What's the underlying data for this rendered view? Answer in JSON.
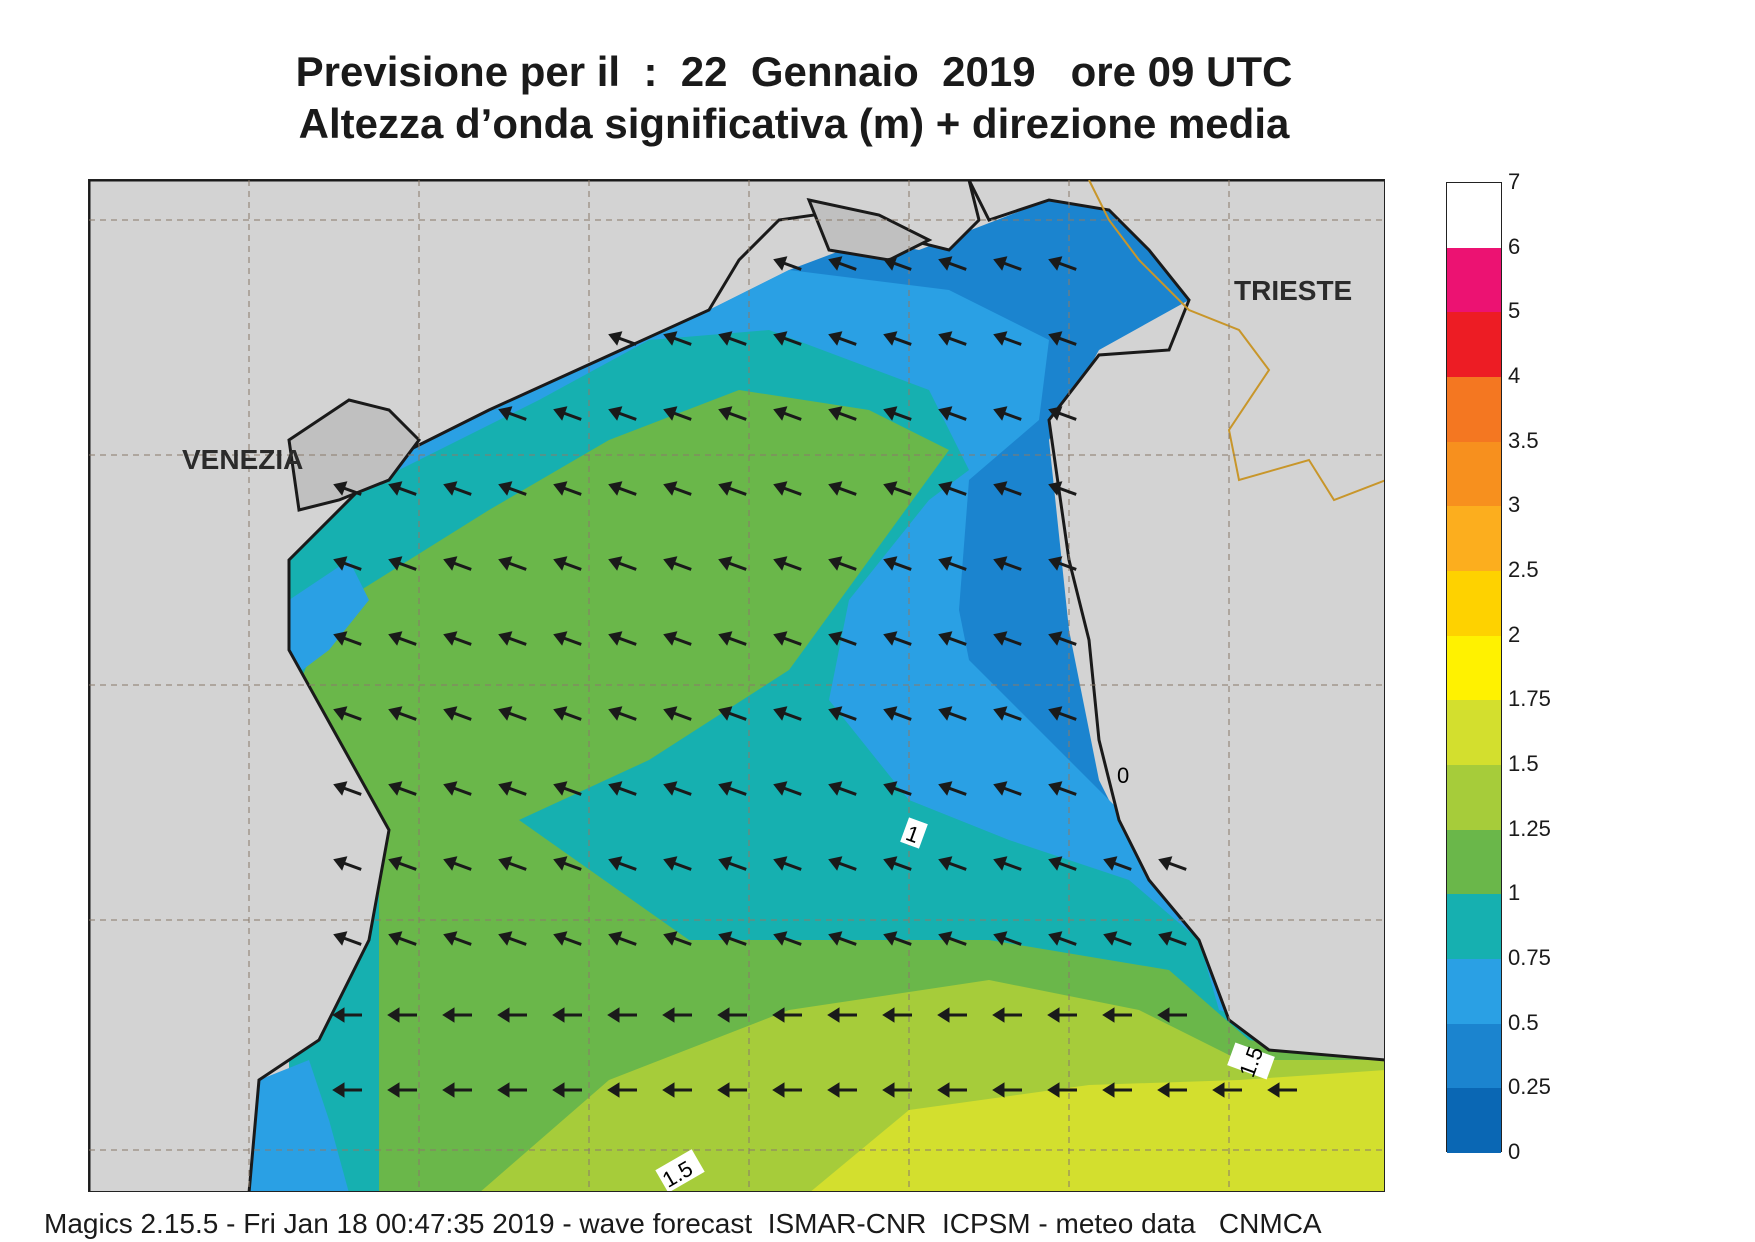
{
  "title_line1": "Previsione per il  :  22  Gennaio  2019   ore 09 UTC",
  "title_line2": "Altezza d’onda significativa (m) + direzione media",
  "map": {
    "labels": {
      "venezia": "VENEZIA",
      "trieste": "TRIESTE"
    },
    "contour_labels": [
      "1",
      "1.5",
      "1.5",
      "0"
    ]
  },
  "legend": {
    "levels": [
      "0",
      "0.25",
      "0.5",
      "0.75",
      "1",
      "1.25",
      "1.5",
      "1.75",
      "2",
      "2.5",
      "3",
      "3.5",
      "4",
      "5",
      "6",
      "7"
    ],
    "colors": [
      "#0a67b4",
      "#1b84cf",
      "#2aa0e4",
      "#16b0b0",
      "#6ab74a",
      "#a6cc3a",
      "#d3df2e",
      "#fff200",
      "#fed200",
      "#fcae1e",
      "#f7901e",
      "#f47721",
      "#ed1c24",
      "#ec1272",
      "#ffffff"
    ]
  },
  "footer": "Magics 2.15.5 - Fri Jan 18 00:47:35 2019 - wave forecast  ISMAR-CNR  ICPSM - meteo data   CNMCA"
}
